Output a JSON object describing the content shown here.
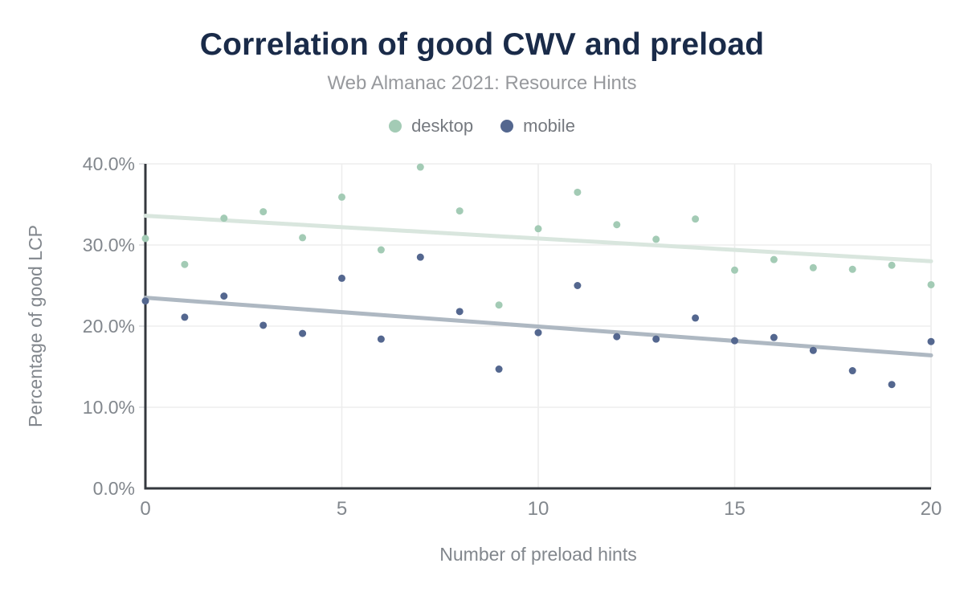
{
  "header": {
    "title": "Correlation of good CWV and preload",
    "subtitle": "Web Almanac 2021: Resource Hints"
  },
  "colors": {
    "title": "#1a2b49",
    "subtitle": "#97999d",
    "legend_text": "#75797f",
    "tick_label": "#82878d",
    "axis_title": "#82878d",
    "axis_line": "#34383e",
    "gridline": "#ededed",
    "desktop": "#a3cbb5",
    "mobile": "#54678f",
    "desktop_trend": "#d9e6de",
    "mobile_trend": "#aeb8c2"
  },
  "chart_data": {
    "type": "scatter",
    "title": "Correlation of good CWV and preload",
    "subtitle": "Web Almanac 2021: Resource Hints",
    "xlabel": "Number of preload hints",
    "ylabel": "Percentage of good LCP",
    "xlim": [
      0,
      20
    ],
    "ylim": [
      0,
      40
    ],
    "grid": true,
    "legend_position": "top",
    "x_ticks": [
      {
        "value": 0,
        "label": "0"
      },
      {
        "value": 5,
        "label": "5"
      },
      {
        "value": 10,
        "label": "10"
      },
      {
        "value": 15,
        "label": "15"
      },
      {
        "value": 20,
        "label": "20"
      }
    ],
    "y_ticks": [
      {
        "value": 0,
        "label": "0.0%"
      },
      {
        "value": 10,
        "label": "10.0%"
      },
      {
        "value": 20,
        "label": "20.0%"
      },
      {
        "value": 30,
        "label": "30.0%"
      },
      {
        "value": 40,
        "label": "40.0%"
      }
    ],
    "x": [
      0,
      1,
      2,
      3,
      4,
      5,
      6,
      7,
      8,
      9,
      10,
      11,
      12,
      13,
      14,
      15,
      16,
      17,
      18,
      19,
      20
    ],
    "series": [
      {
        "name": "desktop",
        "color": "#a3cbb5",
        "values": [
          30.8,
          27.6,
          33.3,
          34.1,
          30.9,
          35.9,
          29.4,
          39.6,
          34.2,
          22.6,
          32.0,
          36.5,
          32.5,
          30.7,
          33.2,
          26.9,
          28.2,
          27.2,
          27.0,
          27.5,
          25.1
        ],
        "trend": {
          "start": 33.6,
          "end": 28.0,
          "color": "#d9e6de"
        }
      },
      {
        "name": "mobile",
        "color": "#54678f",
        "values": [
          23.1,
          21.1,
          23.7,
          20.1,
          19.1,
          25.9,
          18.4,
          28.5,
          21.8,
          14.7,
          19.2,
          25.0,
          18.7,
          18.4,
          21.0,
          18.2,
          18.6,
          17.0,
          14.5,
          12.8,
          18.1
        ],
        "trend": {
          "start": 23.5,
          "end": 16.4,
          "color": "#aeb8c2"
        }
      }
    ]
  }
}
